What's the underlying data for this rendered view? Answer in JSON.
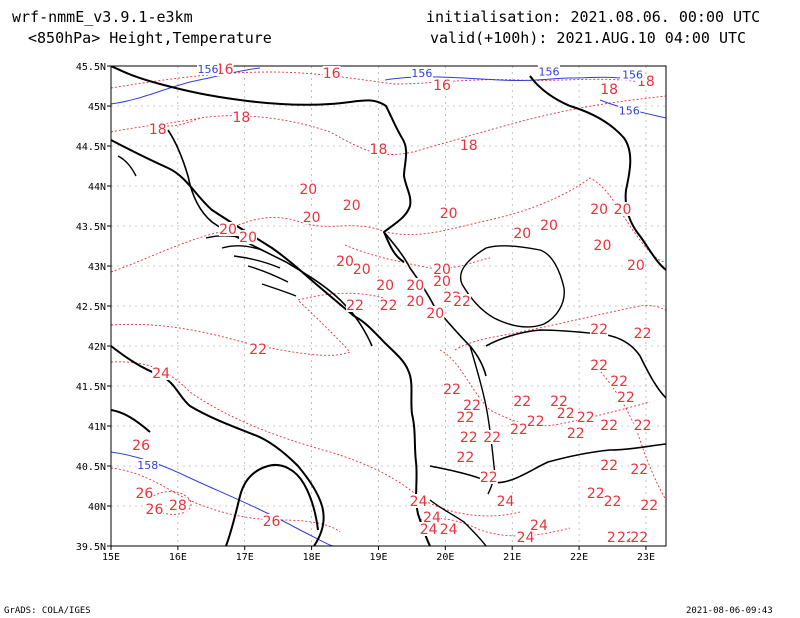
{
  "header": {
    "model": "wrf-nmmE_v3.9.1-e3km",
    "field": "<850hPa> Height,Temperature",
    "init": "initialisation: 2021.08.06. 00:00 UTC",
    "valid": "valid(+100h): 2021.AUG.10 04:00 UTC"
  },
  "footer": {
    "credit": "GrADS: COLA/IGES",
    "timestamp": "2021-08-06-09:43"
  },
  "axes": {
    "lon_labels": [
      "15E",
      "16E",
      "17E",
      "18E",
      "19E",
      "20E",
      "21E",
      "22E",
      "23E"
    ],
    "lat_labels": [
      "45.5N",
      "45N",
      "44.5N",
      "44N",
      "43.5N",
      "43N",
      "42.5N",
      "42N",
      "41.5N",
      "41N",
      "40.5N",
      "40N",
      "39.5N"
    ]
  },
  "colors": {
    "temperature": "#e8323c",
    "height": "#2f3fd8",
    "coast": "#000000",
    "grid": "#9a9a9a"
  },
  "temperature_labels": [
    {
      "text": "16",
      "lon": 16.7,
      "lat": 45.45
    },
    {
      "text": "16",
      "lon": 18.3,
      "lat": 45.4
    },
    {
      "text": "16",
      "lon": 19.95,
      "lat": 45.25
    },
    {
      "text": "18",
      "lon": 22.45,
      "lat": 45.2
    },
    {
      "text": "18",
      "lon": 23.0,
      "lat": 45.3
    },
    {
      "text": "18",
      "lon": 15.7,
      "lat": 44.7
    },
    {
      "text": "18",
      "lon": 16.95,
      "lat": 44.85
    },
    {
      "text": "18",
      "lon": 19.0,
      "lat": 44.45
    },
    {
      "text": "18",
      "lon": 20.35,
      "lat": 44.5
    },
    {
      "text": "20",
      "lon": 17.95,
      "lat": 43.95
    },
    {
      "text": "20",
      "lon": 18.6,
      "lat": 43.75
    },
    {
      "text": "20",
      "lon": 18.0,
      "lat": 43.6
    },
    {
      "text": "20",
      "lon": 20.05,
      "lat": 43.65
    },
    {
      "text": "20",
      "lon": 16.75,
      "lat": 43.45
    },
    {
      "text": "20",
      "lon": 17.05,
      "lat": 43.35
    },
    {
      "text": "20",
      "lon": 18.5,
      "lat": 43.05
    },
    {
      "text": "20",
      "lon": 18.75,
      "lat": 42.95
    },
    {
      "text": "20",
      "lon": 19.1,
      "lat": 42.75
    },
    {
      "text": "20",
      "lon": 19.55,
      "lat": 42.75
    },
    {
      "text": "20",
      "lon": 19.95,
      "lat": 42.95
    },
    {
      "text": "20",
      "lon": 19.95,
      "lat": 42.8
    },
    {
      "text": "20",
      "lon": 19.55,
      "lat": 42.55
    },
    {
      "text": "20",
      "lon": 19.85,
      "lat": 42.4
    },
    {
      "text": "20",
      "lon": 21.15,
      "lat": 43.4
    },
    {
      "text": "20",
      "lon": 21.55,
      "lat": 43.5
    },
    {
      "text": "20",
      "lon": 22.3,
      "lat": 43.7
    },
    {
      "text": "20",
      "lon": 22.65,
      "lat": 43.7
    },
    {
      "text": "20",
      "lon": 22.35,
      "lat": 43.25
    },
    {
      "text": "20",
      "lon": 22.85,
      "lat": 43.0
    },
    {
      "text": "22",
      "lon": 18.65,
      "lat": 42.5
    },
    {
      "text": "22",
      "lon": 19.15,
      "lat": 42.5
    },
    {
      "text": "22",
      "lon": 20.1,
      "lat": 42.6
    },
    {
      "text": "22",
      "lon": 20.25,
      "lat": 42.55
    },
    {
      "text": "22",
      "lon": 17.2,
      "lat": 41.95
    },
    {
      "text": "22",
      "lon": 22.3,
      "lat": 42.2
    },
    {
      "text": "22",
      "lon": 22.95,
      "lat": 42.15
    },
    {
      "text": "22",
      "lon": 20.1,
      "lat": 41.45
    },
    {
      "text": "22",
      "lon": 20.4,
      "lat": 41.25
    },
    {
      "text": "22",
      "lon": 20.3,
      "lat": 41.1
    },
    {
      "text": "22",
      "lon": 21.15,
      "lat": 41.3
    },
    {
      "text": "22",
      "lon": 21.7,
      "lat": 41.3
    },
    {
      "text": "22",
      "lon": 22.3,
      "lat": 41.75
    },
    {
      "text": "22",
      "lon": 22.6,
      "lat": 41.55
    },
    {
      "text": "22",
      "lon": 22.7,
      "lat": 41.35
    },
    {
      "text": "22",
      "lon": 21.35,
      "lat": 41.05
    },
    {
      "text": "22",
      "lon": 21.8,
      "lat": 41.15
    },
    {
      "text": "22",
      "lon": 22.1,
      "lat": 41.1
    },
    {
      "text": "22",
      "lon": 22.45,
      "lat": 41.0
    },
    {
      "text": "22",
      "lon": 21.1,
      "lat": 40.95
    },
    {
      "text": "22",
      "lon": 21.95,
      "lat": 40.9
    },
    {
      "text": "22",
      "lon": 22.95,
      "lat": 41.0
    },
    {
      "text": "22",
      "lon": 22.45,
      "lat": 40.5
    },
    {
      "text": "22",
      "lon": 20.35,
      "lat": 40.85
    },
    {
      "text": "22",
      "lon": 20.7,
      "lat": 40.85
    },
    {
      "text": "22",
      "lon": 20.3,
      "lat": 40.6
    },
    {
      "text": "22",
      "lon": 20.65,
      "lat": 40.35
    },
    {
      "text": "22",
      "lon": 22.25,
      "lat": 40.15
    },
    {
      "text": "22",
      "lon": 22.5,
      "lat": 40.05
    },
    {
      "text": "22",
      "lon": 22.55,
      "lat": 39.6
    },
    {
      "text": "22",
      "lon": 22.7,
      "lat": 39.6
    },
    {
      "text": "22",
      "lon": 22.9,
      "lat": 39.6
    },
    {
      "text": "22",
      "lon": 23.05,
      "lat": 40.0
    },
    {
      "text": "22",
      "lon": 22.9,
      "lat": 40.45
    },
    {
      "text": "24",
      "lon": 15.75,
      "lat": 41.65
    },
    {
      "text": "24",
      "lon": 19.6,
      "lat": 40.05
    },
    {
      "text": "24",
      "lon": 20.9,
      "lat": 40.05
    },
    {
      "text": "24",
      "lon": 19.8,
      "lat": 39.85
    },
    {
      "text": "24",
      "lon": 19.75,
      "lat": 39.7
    },
    {
      "text": "24",
      "lon": 20.05,
      "lat": 39.7
    },
    {
      "text": "24",
      "lon": 21.4,
      "lat": 39.75
    },
    {
      "text": "24",
      "lon": 21.2,
      "lat": 39.6
    },
    {
      "text": "26",
      "lon": 15.45,
      "lat": 40.75
    },
    {
      "text": "26",
      "lon": 15.5,
      "lat": 40.15
    },
    {
      "text": "26",
      "lon": 15.65,
      "lat": 39.95
    },
    {
      "text": "26",
      "lon": 17.4,
      "lat": 39.8
    },
    {
      "text": "28",
      "lon": 16.0,
      "lat": 40.0
    }
  ],
  "height_labels": [
    {
      "text": "156",
      "lon": 16.45,
      "lat": 45.45
    },
    {
      "text": "156",
      "lon": 19.65,
      "lat": 45.4
    },
    {
      "text": "156",
      "lon": 21.55,
      "lat": 45.42
    },
    {
      "text": "156",
      "lon": 22.8,
      "lat": 45.38
    },
    {
      "text": "156",
      "lon": 22.75,
      "lat": 44.93
    },
    {
      "text": "158",
      "lon": 15.55,
      "lat": 40.5
    }
  ]
}
